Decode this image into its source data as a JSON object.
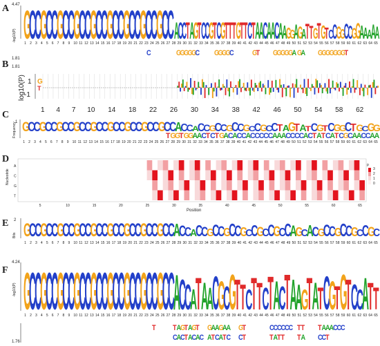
{
  "colors": {
    "A": "#22a32b",
    "C": "#2340c9",
    "G": "#f2a31b",
    "T": "#e02a2a",
    "grid": "#d9d9d9",
    "heatLight": "#f8d9da",
    "heatMid": "#f2a0a3",
    "heatDark": "#e3141e"
  },
  "panels": {
    "A": {
      "label": "A",
      "ymax": "4.47",
      "ylabel": "-log10(P)",
      "ymin": "1.81",
      "top_seq": "GCCGCCGCCGCCGCCGCCGCCGCCGCC",
      "tail": "ACCTAGTCCGTCGTTTGTTCTAACAACAAGGAGATTGTGTCCGGCCGGAAAAA",
      "bottom": [
        "C",
        "GGGGGC",
        "GGGGC",
        "GT",
        "GGGGGA",
        "GA",
        "GGGGGGGT"
      ]
    },
    "B": {
      "label": "B",
      "ylabel": "log10(P)",
      "ymax": "1.81",
      "tick_top": "1",
      "tick_bot": "-1",
      "first_letters": "GT",
      "xticks": [
        "1",
        "4",
        "7",
        "10",
        "14",
        "18",
        "22",
        "26",
        "30",
        "34",
        "38",
        "42",
        "46",
        "50",
        "54",
        "58",
        "62"
      ]
    },
    "C": {
      "label": "C",
      "ylabel": "Frequency",
      "ytick": "1",
      "top_seq": "GCCGCCGCCGCCGCCGCCGCCGCCGCCACCACCGCCGCCGCCGCCTAGTATCGTCGGCTGCGG",
      "low_seq": "TGGTGGAACTCTGACACCACCCCCAAACCCCACTATCATCGCAACCAA"
    },
    "D": {
      "label": "D",
      "ylabel": "Nucleotide",
      "xlabel": "Position",
      "rows": [
        "A",
        "C",
        "G",
        "T"
      ],
      "xticks": [
        "5",
        "10",
        "15",
        "20",
        "25",
        "30",
        "35",
        "40",
        "45",
        "50",
        "55",
        "60",
        "65"
      ],
      "legend_title": "p",
      "legend_ticks": [
        "3",
        "2",
        "1",
        "0"
      ]
    },
    "E": {
      "label": "E",
      "ylabel": "Bits",
      "ymax": "2",
      "top_seq": "GCCGCCGCCGCCGCCGCCGCCGCCGCCACCACCGCCGCCGCCGCCGCCAGCACGCCGCCGCCGC"
    },
    "F": {
      "label": "F",
      "ymax": "4.24",
      "ylabel": "-log10(P)",
      "ymin": "1.76",
      "top_seq": "GCCGCCGCCGCCGCCGCCGCCGCCGCCACCATAACGCGTTCTTCTACTAAGTATCGTGTCCATT",
      "bottom": [
        "T",
        "TAGTAGT",
        "GAAGAA",
        "GT",
        "CCCCCC",
        "TT",
        "TAAACCC",
        "CACTACAC",
        "ATCATC",
        "CT",
        "TATT",
        "TA",
        "CCT"
      ]
    }
  },
  "positions": [
    "1",
    "2",
    "3",
    "4",
    "5",
    "6",
    "7",
    "8",
    "9",
    "10",
    "11",
    "12",
    "13",
    "14",
    "15",
    "16",
    "17",
    "18",
    "19",
    "20",
    "21",
    "22",
    "23",
    "24",
    "25",
    "26",
    "27",
    "28",
    "29",
    "30",
    "31",
    "32",
    "33",
    "34",
    "35",
    "36",
    "37",
    "38",
    "39",
    "40",
    "41",
    "42",
    "43",
    "44",
    "45",
    "46",
    "47",
    "48",
    "49",
    "50",
    "51",
    "52",
    "53",
    "54",
    "55",
    "56",
    "57",
    "58",
    "59",
    "60",
    "61",
    "62",
    "63",
    "64",
    "65"
  ]
}
